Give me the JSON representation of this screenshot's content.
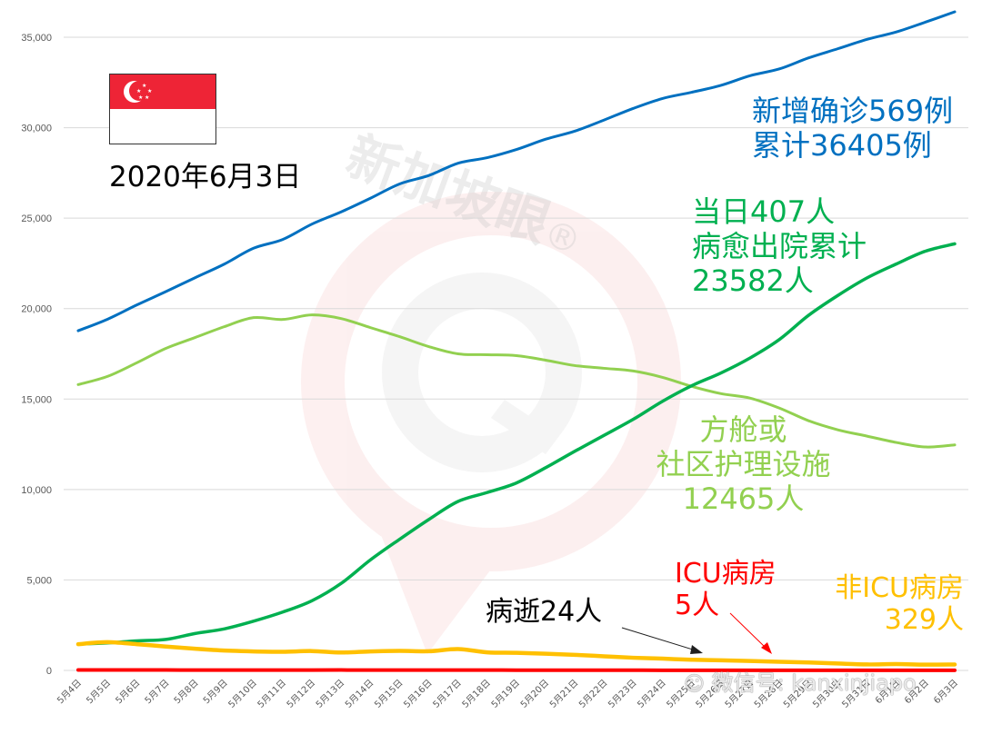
{
  "chart_data": {
    "type": "line",
    "title": "",
    "xlabel": "",
    "ylabel": "",
    "ylim": [
      0,
      35000
    ],
    "grid": true,
    "legend": "none (inline annotations)",
    "y_ticks": [
      "0",
      "5,000",
      "10,000",
      "15,000",
      "20,000",
      "25,000",
      "30,000",
      "35,000"
    ],
    "categories": [
      "5月4日",
      "5月5日",
      "5月6日",
      "5月7日",
      "5月8日",
      "5月9日",
      "5月10日",
      "5月11日",
      "5月12日",
      "5月13日",
      "5月14日",
      "5月15日",
      "5月16日",
      "5月17日",
      "5月18日",
      "5月19日",
      "5月20日",
      "5月21日",
      "5月22日",
      "5月23日",
      "5月24日",
      "5月25日",
      "5月26日",
      "5月27日",
      "5月28日",
      "5月29日",
      "5月30日",
      "5月31日",
      "6月1日",
      "6月2日",
      "6月3日"
    ],
    "series": [
      {
        "name": "累计确诊",
        "color": "#0070C0",
        "values": [
          18778,
          19410,
          20198,
          20939,
          21707,
          22460,
          23336,
          23822,
          24671,
          25346,
          26098,
          26891,
          27356,
          28038,
          28343,
          28794,
          29364,
          29812,
          30426,
          31068,
          31616,
          31960,
          32343,
          32876,
          33249,
          33860,
          34366,
          34884,
          35292,
          35836,
          36405
        ]
      },
      {
        "name": "病愈出院累计",
        "color": "#00B050",
        "values": [
          1457,
          1519,
          1634,
          1712,
          2040,
          2296,
          2721,
          3225,
          3851,
          4809,
          6106,
          7248,
          8342,
          9340,
          9835,
          10365,
          11207,
          12117,
          12995,
          13882,
          14876,
          15738,
          16444,
          17276,
          18294,
          19631,
          20727,
          21699,
          22466,
          23175,
          23582
        ]
      },
      {
        "name": "方舱或社区护理设施",
        "color": "#92D050",
        "values": [
          15800,
          16250,
          17000,
          17800,
          18400,
          19000,
          19500,
          19400,
          19650,
          19450,
          18950,
          18450,
          17900,
          17500,
          17450,
          17400,
          17150,
          16850,
          16700,
          16550,
          16200,
          15700,
          15300,
          15050,
          14500,
          13800,
          13300,
          12950,
          12600,
          12350,
          12465
        ]
      },
      {
        "name": "非ICU病房",
        "color": "#FFC000",
        "values": [
          1450,
          1560,
          1450,
          1320,
          1200,
          1100,
          1050,
          1030,
          1070,
          990,
          1050,
          1080,
          1060,
          1180,
          1000,
          970,
          920,
          860,
          780,
          700,
          650,
          590,
          560,
          520,
          480,
          440,
          380,
          330,
          350,
          320,
          329
        ]
      },
      {
        "name": "ICU病房",
        "color": "#FF0000",
        "values": [
          24,
          23,
          22,
          22,
          21,
          20,
          20,
          20,
          21,
          22,
          20,
          20,
          19,
          18,
          17,
          15,
          14,
          12,
          11,
          10,
          9,
          9,
          8,
          8,
          7,
          7,
          6,
          5,
          5,
          5,
          5
        ]
      },
      {
        "name": "病逝",
        "color": "#1F1F1F",
        "values": [
          18,
          18,
          18,
          18,
          18,
          18,
          18,
          20,
          20,
          20,
          20,
          21,
          21,
          22,
          22,
          22,
          22,
          22,
          23,
          23,
          23,
          23,
          23,
          23,
          23,
          23,
          23,
          23,
          24,
          24,
          24
        ]
      }
    ],
    "annotations": [
      {
        "text": "新增确诊569例",
        "series": "累计确诊"
      },
      {
        "text": "累计36405例",
        "series": "累计确诊"
      },
      {
        "text": "当日407人",
        "series": "病愈出院累计"
      },
      {
        "text": "病愈出院累计",
        "series": "病愈出院累计"
      },
      {
        "text": "23582人",
        "series": "病愈出院累计"
      },
      {
        "text": "方舱或",
        "series": "方舱或社区护理设施"
      },
      {
        "text": "社区护理设施",
        "series": "方舱或社区护理设施"
      },
      {
        "text": "12465人",
        "series": "方舱或社区护理设施"
      },
      {
        "text": "ICU病房",
        "series": "ICU病房"
      },
      {
        "text": "5人",
        "series": "ICU病房"
      },
      {
        "text": "非ICU病房",
        "series": "非ICU病房"
      },
      {
        "text": "329人",
        "series": "非ICU病房"
      },
      {
        "text": "病逝24人",
        "series": "病逝"
      }
    ]
  },
  "header": {
    "date": "2020年6月3日",
    "flag": "singapore-flag"
  },
  "annotations": {
    "confirmed_new": "新增确诊569例",
    "confirmed_total": "累计36405例",
    "discharged_today": "当日407人",
    "discharged_label": "病愈出院累计",
    "discharged_total": "23582人",
    "community_line1": "方舱或",
    "community_line2": "社区护理设施",
    "community_total": "12465人",
    "deaths": "病逝24人",
    "icu_label": "ICU病房",
    "icu_total": "5人",
    "nonicu_label": "非ICU病房",
    "nonicu_total": "329人"
  },
  "watermark": {
    "brand": "新加坡眼",
    "registered": "®",
    "wechat": "微信号: kanxinjiapo"
  },
  "colors": {
    "confirmed": "#0070C0",
    "discharged": "#00B050",
    "community": "#92D050",
    "nonicu": "#FFC000",
    "icu": "#FF0000",
    "deaths": "#1F1F1F",
    "grid": "#D9D9D9",
    "axis_text": "#595959"
  }
}
